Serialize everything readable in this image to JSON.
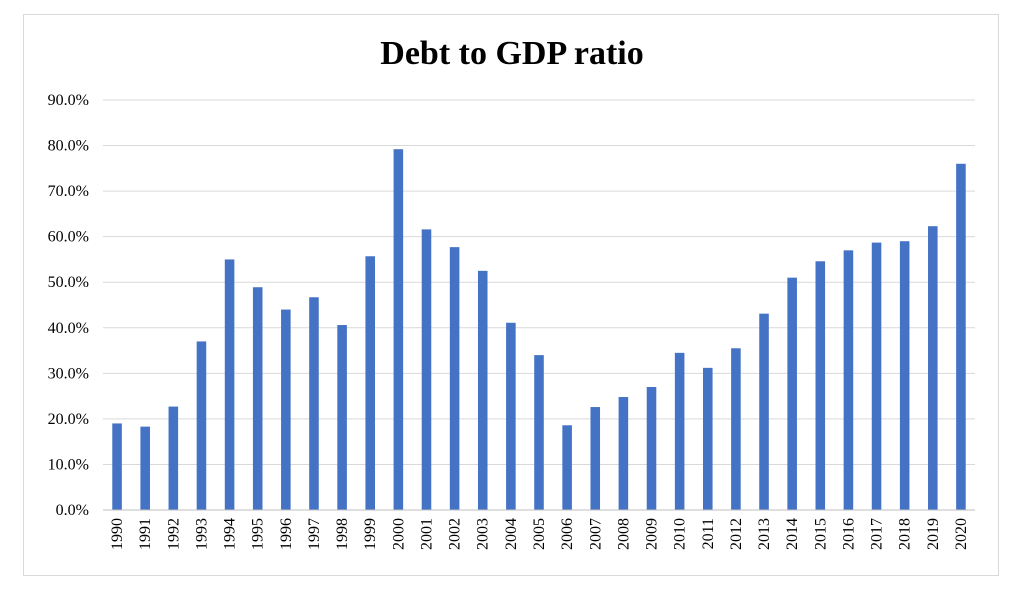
{
  "chart_data": {
    "type": "bar",
    "title": "Debt to GDP ratio",
    "xlabel": "",
    "ylabel": "",
    "ylim": [
      0,
      90
    ],
    "yticks": [
      0,
      10,
      20,
      30,
      40,
      50,
      60,
      70,
      80,
      90
    ],
    "ytick_labels": [
      "0.0%",
      "10.0%",
      "20.0%",
      "30.0%",
      "40.0%",
      "50.0%",
      "60.0%",
      "70.0%",
      "80.0%",
      "90.0%"
    ],
    "grid": true,
    "legend": "none",
    "bar_color": "#4472c4",
    "categories": [
      "1990",
      "1991",
      "1992",
      "1993",
      "1994",
      "1995",
      "1996",
      "1997",
      "1998",
      "1999",
      "2000",
      "2001",
      "2002",
      "2003",
      "2004",
      "2005",
      "2006",
      "2007",
      "2008",
      "2009",
      "2010",
      "2011",
      "2012",
      "2013",
      "2014",
      "2015",
      "2016",
      "2017",
      "2018",
      "2019",
      "2020"
    ],
    "values": [
      19.0,
      18.3,
      22.7,
      37.0,
      55.0,
      48.9,
      44.0,
      46.7,
      40.6,
      55.7,
      79.2,
      61.6,
      57.7,
      52.5,
      41.1,
      34.0,
      18.6,
      22.6,
      24.8,
      27.0,
      34.5,
      31.2,
      35.5,
      43.1,
      51.0,
      54.6,
      57.0,
      58.7,
      59.0,
      62.3,
      76.0
    ]
  }
}
